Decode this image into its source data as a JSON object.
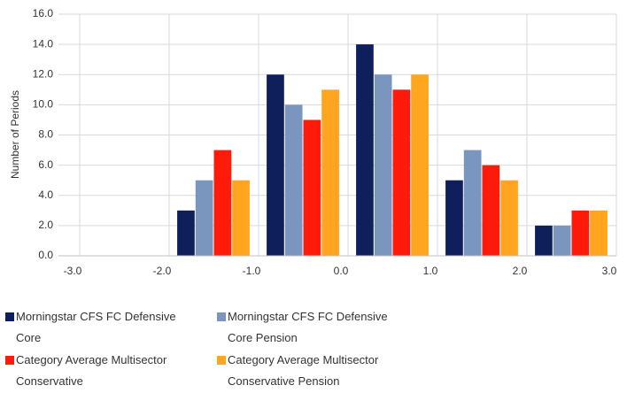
{
  "chart_data": {
    "type": "bar",
    "y_label": "Number of Periods",
    "x": [
      -1.5,
      -0.5,
      0.5,
      1.5,
      2.5
    ],
    "series": [
      {
        "name": "Morningstar CFS FC Defensive Core",
        "color": "#0f1f5c",
        "values": [
          3,
          12,
          14,
          5,
          2
        ]
      },
      {
        "name": "Morningstar CFS FC Defensive Core Pension",
        "color": "#7a96bf",
        "values": [
          5,
          10,
          12,
          7,
          2
        ]
      },
      {
        "name": "Category Average Multisector Conservative",
        "color": "#ff1a0a",
        "values": [
          7,
          9,
          11,
          6,
          3
        ]
      },
      {
        "name": "Category Average Multisector Conservative Pension",
        "color": "#ffa51f",
        "values": [
          5,
          11,
          12,
          5,
          3
        ]
      }
    ],
    "xlim": [
      -3,
      3
    ],
    "xticks": [
      {
        "value": -3,
        "label": "-3.0"
      },
      {
        "value": -2,
        "label": "-2.0"
      },
      {
        "value": -1,
        "label": "-1.0"
      },
      {
        "value": 0,
        "label": "0.0"
      },
      {
        "value": 1,
        "label": "1.0"
      },
      {
        "value": 2,
        "label": "2.0"
      },
      {
        "value": 3,
        "label": "3.0"
      }
    ],
    "ylim": [
      0,
      16
    ],
    "yticks": [
      {
        "value": 0,
        "label": "0.0"
      },
      {
        "value": 2,
        "label": "2.0"
      },
      {
        "value": 4,
        "label": "4.0"
      },
      {
        "value": 6,
        "label": "6.0"
      },
      {
        "value": 8,
        "label": "8.0"
      },
      {
        "value": 10,
        "label": "10.0"
      },
      {
        "value": 12,
        "label": "12.0"
      },
      {
        "value": 14,
        "label": "14.0"
      },
      {
        "value": 16,
        "label": "16.0"
      }
    ],
    "grid": true,
    "legend": "bottom"
  }
}
